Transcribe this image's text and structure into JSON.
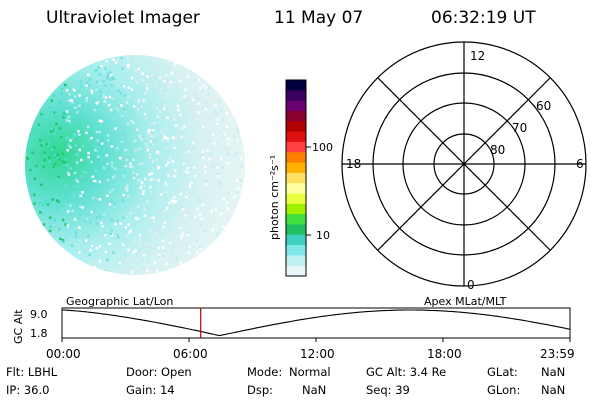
{
  "header": {
    "instrument": "Ultraviolet Imager",
    "date": "11 May 07",
    "time": "06:32:19 UT"
  },
  "colorbar": {
    "unit_label": "photon cm⁻²s⁻¹",
    "ticks": [
      "100",
      "10"
    ],
    "colors": [
      "#000040",
      "#3a0060",
      "#6a0070",
      "#8a0030",
      "#b00000",
      "#e01010",
      "#ff4040",
      "#ff8000",
      "#ffb000",
      "#ffe060",
      "#ffffa0",
      "#e8ff40",
      "#a0f000",
      "#40e040",
      "#20c060",
      "#40d0c0",
      "#80e8e8",
      "#c0f0f0",
      "#e8f8f8"
    ]
  },
  "polar": {
    "mlt_labels": {
      "top": "12",
      "bottom": "0",
      "left": "18",
      "right": "6"
    },
    "lat_labels": [
      "60",
      "70",
      "80"
    ]
  },
  "timeline": {
    "ylabel": "GC Alt",
    "ytick_top": "9.0",
    "ytick_bottom": "1.8",
    "left_title": "Geographic Lat/Lon",
    "right_title": "Apex MLat/MLT",
    "xticks": [
      "00:00",
      "06:00",
      "12:00",
      "18:00",
      "23:59"
    ],
    "current_time_fraction": 0.273
  },
  "footer": {
    "flt": "Flt: LBHL",
    "ip": "IP: 36.0",
    "door": "Door: Open",
    "gain": "Gain: 14",
    "mode_key": "Mode:",
    "mode_val": "Normal",
    "dsp_key": "Dsp:",
    "dsp_val": "NaN",
    "gcalt": "GC Alt: 3.4 Re",
    "seq": "Seq: 39",
    "glat_key": "GLat:",
    "glat_val": "NaN",
    "glon_key": "GLon:",
    "glon_val": "NaN"
  }
}
